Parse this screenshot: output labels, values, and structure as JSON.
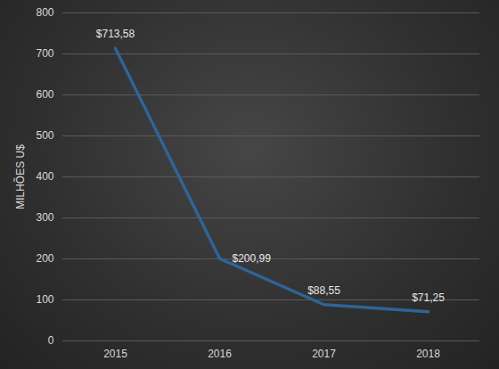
{
  "chart_data": {
    "type": "line",
    "y_label": "MILHÕES U$",
    "categories": [
      "2015",
      "2016",
      "2017",
      "2018"
    ],
    "values": [
      713.58,
      200.99,
      88.55,
      71.25
    ],
    "value_labels": [
      "$713,58",
      "$200,99",
      "$88,55",
      "$71,25"
    ],
    "color": "#2f6496",
    "ylim": [
      0,
      800
    ],
    "yticks": [
      0,
      100,
      200,
      300,
      400,
      500,
      600,
      700,
      800
    ],
    "grid": true,
    "data_labels": true
  }
}
